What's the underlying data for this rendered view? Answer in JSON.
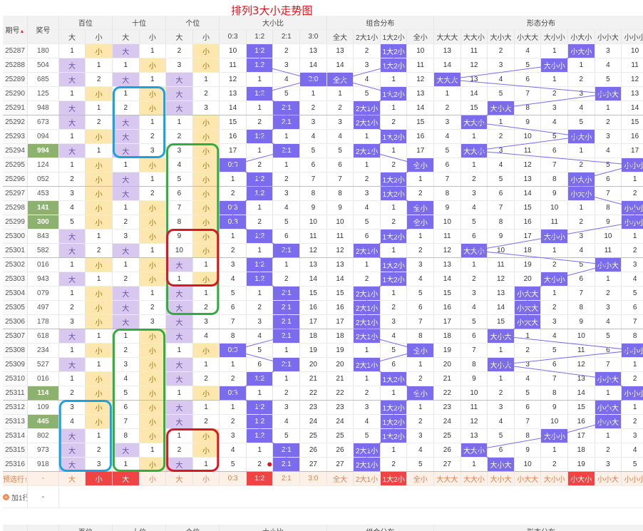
{
  "title": "排列3大小走势图",
  "header": {
    "period": "期号",
    "jiang": "奖号",
    "groups": [
      "百位",
      "十位",
      "个位",
      "大小比",
      "组合分布",
      "形态分布"
    ],
    "sub_pos": [
      "大",
      "小"
    ],
    "ratios": [
      "0:3",
      "1:2",
      "2:1",
      "3:0"
    ],
    "combos": [
      "全大",
      "2大1小",
      "1大2小",
      "全小"
    ],
    "forms": [
      "大大大",
      "大大小",
      "大小大",
      "小大大",
      "大小小",
      "小大小",
      "小小大",
      "小小小"
    ],
    "sort_icon": "sort-icon"
  },
  "accent_colors": {
    "purple_bar": "#7a6cec",
    "big_cell": "#d8c8f0",
    "small_cell": "#fde7ae",
    "green_period": "#8db26f",
    "red": "#f04343"
  },
  "rows": [
    {
      "p": "25287",
      "j": "180",
      "b": [
        "1",
        "小"
      ],
      "s": [
        "大",
        "1"
      ],
      "g": [
        "2",
        "小"
      ],
      "r": [
        "10",
        "1:2",
        "2",
        "13"
      ],
      "c": [
        "13",
        "2",
        "1大2小",
        "10"
      ],
      "f": [
        "13",
        "11",
        "2",
        "4",
        "1",
        "小大小",
        "3",
        "10"
      ]
    },
    {
      "p": "25288",
      "j": "504",
      "b": [
        "大",
        "1"
      ],
      "s": [
        "1",
        "小"
      ],
      "g": [
        "3",
        "小"
      ],
      "r": [
        "11",
        "1:2",
        "3",
        "14"
      ],
      "c": [
        "14",
        "3",
        "1大2小",
        "11"
      ],
      "f": [
        "14",
        "12",
        "3",
        "5",
        "大小小",
        "1",
        "4",
        "11"
      ]
    },
    {
      "p": "25289",
      "j": "685",
      "b": [
        "大",
        "2"
      ],
      "s": [
        "大",
        "1"
      ],
      "g": [
        "大",
        "1"
      ],
      "r": [
        "12",
        "1",
        "4",
        "3:0"
      ],
      "c": [
        "全大",
        "4",
        "1",
        "12"
      ],
      "f": [
        "大大大",
        "13",
        "4",
        "6",
        "1",
        "2",
        "5",
        "12"
      ]
    },
    {
      "p": "25290",
      "j": "125",
      "b": [
        "1",
        "小"
      ],
      "s": [
        "1",
        "小"
      ],
      "g": [
        "大",
        "2"
      ],
      "r": [
        "13",
        "1:2",
        "5",
        "1"
      ],
      "c": [
        "1",
        "5",
        "1大2小",
        "13"
      ],
      "f": [
        "1",
        "14",
        "5",
        "7",
        "2",
        "3",
        "小小大",
        "13"
      ]
    },
    {
      "p": "25291",
      "j": "948",
      "b": [
        "大",
        "1"
      ],
      "s": [
        "2",
        "小"
      ],
      "g": [
        "大",
        "3"
      ],
      "r": [
        "14",
        "1",
        "2:1",
        "2"
      ],
      "c": [
        "2",
        "2大1小",
        "1",
        "14"
      ],
      "f": [
        "2",
        "15",
        "大小大",
        "8",
        "3",
        "4",
        "1",
        "14"
      ]
    },
    {
      "p": "25292",
      "j": "673",
      "b": [
        "大",
        "2"
      ],
      "s": [
        "大",
        "1"
      ],
      "g": [
        "1",
        "小"
      ],
      "r": [
        "15",
        "2",
        "2:1",
        "3"
      ],
      "c": [
        "3",
        "2大1小",
        "2",
        "15"
      ],
      "f": [
        "3",
        "大大小",
        "1",
        "9",
        "4",
        "5",
        "2",
        "15"
      ]
    },
    {
      "p": "25293",
      "j": "094",
      "b": [
        "1",
        "小"
      ],
      "s": [
        "大",
        "2"
      ],
      "g": [
        "2",
        "小"
      ],
      "r": [
        "16",
        "1:2",
        "1",
        "4"
      ],
      "c": [
        "4",
        "1",
        "1大2小",
        "16"
      ],
      "f": [
        "4",
        "1",
        "2",
        "10",
        "5",
        "小大小",
        "3",
        "16"
      ]
    },
    {
      "p": "25294",
      "j": "994",
      "b": [
        "大",
        "1"
      ],
      "s": [
        "大",
        "3"
      ],
      "g": [
        "3",
        "小"
      ],
      "r": [
        "17",
        "1",
        "2:1",
        "5"
      ],
      "c": [
        "5",
        "2大1小",
        "1",
        "17"
      ],
      "f": [
        "5",
        "大大小",
        "3",
        "11",
        "6",
        "1",
        "4",
        "17"
      ],
      "gp": 1
    },
    {
      "p": "25295",
      "j": "124",
      "b": [
        "1",
        "小"
      ],
      "s": [
        "1",
        "小"
      ],
      "g": [
        "4",
        "小"
      ],
      "r": [
        "0:3",
        "2",
        "1",
        "6"
      ],
      "c": [
        "6",
        "1",
        "2",
        "全小"
      ],
      "f": [
        "6",
        "1",
        "4",
        "12",
        "7",
        "2",
        "5",
        "小小小"
      ]
    },
    {
      "p": "25296",
      "j": "052",
      "b": [
        "2",
        "小"
      ],
      "s": [
        "大",
        "1"
      ],
      "g": [
        "5",
        "小"
      ],
      "r": [
        "1",
        "1:2",
        "2",
        "7"
      ],
      "c": [
        "7",
        "2",
        "1大2小",
        "1"
      ],
      "f": [
        "7",
        "2",
        "5",
        "13",
        "8",
        "小大小",
        "6",
        "1"
      ]
    },
    {
      "p": "25297",
      "j": "453",
      "b": [
        "3",
        "小"
      ],
      "s": [
        "大",
        "2"
      ],
      "g": [
        "6",
        "小"
      ],
      "r": [
        "2",
        "1:2",
        "3",
        "8"
      ],
      "c": [
        "8",
        "3",
        "1大2小",
        "2"
      ],
      "f": [
        "8",
        "3",
        "6",
        "14",
        "9",
        "小大小",
        "7",
        "2"
      ]
    },
    {
      "p": "25298",
      "j": "141",
      "b": [
        "4",
        "小"
      ],
      "s": [
        "1",
        "小"
      ],
      "g": [
        "7",
        "小"
      ],
      "r": [
        "0:3",
        "1",
        "4",
        "9"
      ],
      "c": [
        "9",
        "4",
        "1",
        "全小"
      ],
      "f": [
        "9",
        "4",
        "7",
        "15",
        "10",
        "1",
        "8",
        "小小小"
      ],
      "gp": 1
    },
    {
      "p": "25299",
      "j": "300",
      "b": [
        "5",
        "小"
      ],
      "s": [
        "2",
        "小"
      ],
      "g": [
        "8",
        "小"
      ],
      "r": [
        "0:3",
        "2",
        "5",
        "10"
      ],
      "c": [
        "10",
        "5",
        "2",
        "全小"
      ],
      "f": [
        "10",
        "5",
        "8",
        "16",
        "11",
        "2",
        "9",
        "小小小"
      ],
      "gp": 1
    },
    {
      "p": "25300",
      "j": "843",
      "b": [
        "大",
        "1"
      ],
      "s": [
        "3",
        "小"
      ],
      "g": [
        "9",
        "小"
      ],
      "r": [
        "1",
        "1:2",
        "6",
        "11"
      ],
      "c": [
        "11",
        "6",
        "1大2小",
        "1"
      ],
      "f": [
        "11",
        "6",
        "9",
        "17",
        "大小小",
        "3",
        "10",
        "1"
      ]
    },
    {
      "p": "25301",
      "j": "582",
      "b": [
        "大",
        "2"
      ],
      "s": [
        "大",
        "1"
      ],
      "g": [
        "10",
        "小"
      ],
      "r": [
        "2",
        "1",
        "2:1",
        "12"
      ],
      "c": [
        "12",
        "2大1小",
        "1",
        "2"
      ],
      "f": [
        "12",
        "大大小",
        "10",
        "18",
        "1",
        "4",
        "11",
        "2"
      ]
    },
    {
      "p": "25302",
      "j": "016",
      "b": [
        "1",
        "小"
      ],
      "s": [
        "1",
        "小"
      ],
      "g": [
        "大",
        "1"
      ],
      "r": [
        "3",
        "1:2",
        "1",
        "13"
      ],
      "c": [
        "13",
        "1",
        "1大2小",
        "3"
      ],
      "f": [
        "13",
        "1",
        "11",
        "19",
        "2",
        "5",
        "小小大",
        "3"
      ]
    },
    {
      "p": "25303",
      "j": "943",
      "b": [
        "大",
        "1"
      ],
      "s": [
        "2",
        "小"
      ],
      "g": [
        "1",
        "小"
      ],
      "r": [
        "4",
        "1:2",
        "2",
        "14"
      ],
      "c": [
        "14",
        "2",
        "1大2小",
        "4"
      ],
      "f": [
        "14",
        "2",
        "12",
        "20",
        "大小小",
        "6",
        "1",
        "4"
      ]
    },
    {
      "p": "25304",
      "j": "079",
      "b": [
        "1",
        "小"
      ],
      "s": [
        "大",
        "1"
      ],
      "g": [
        "大",
        "1"
      ],
      "r": [
        "5",
        "1",
        "2:1",
        "15"
      ],
      "c": [
        "15",
        "2大1小",
        "1",
        "5"
      ],
      "f": [
        "15",
        "3",
        "13",
        "小大大",
        "1",
        "7",
        "2",
        "5"
      ]
    },
    {
      "p": "25305",
      "j": "497",
      "b": [
        "2",
        "小"
      ],
      "s": [
        "大",
        "2"
      ],
      "g": [
        "大",
        "2"
      ],
      "r": [
        "6",
        "2",
        "2:1",
        "16"
      ],
      "c": [
        "16",
        "2大1小",
        "2",
        "6"
      ],
      "f": [
        "16",
        "4",
        "14",
        "小大大",
        "2",
        "8",
        "3",
        "6"
      ]
    },
    {
      "p": "25306",
      "j": "178",
      "b": [
        "3",
        "小"
      ],
      "s": [
        "大",
        "3"
      ],
      "g": [
        "大",
        "3"
      ],
      "r": [
        "7",
        "3",
        "2:1",
        "17"
      ],
      "c": [
        "17",
        "2大1小",
        "3",
        "7"
      ],
      "f": [
        "17",
        "5",
        "15",
        "小大大",
        "3",
        "9",
        "4",
        "7"
      ]
    },
    {
      "p": "25307",
      "j": "618",
      "b": [
        "大",
        "1"
      ],
      "s": [
        "1",
        "小"
      ],
      "g": [
        "大",
        "4"
      ],
      "r": [
        "8",
        "4",
        "2:1",
        "18"
      ],
      "c": [
        "18",
        "2大1小",
        "4",
        "8"
      ],
      "f": [
        "18",
        "6",
        "大小大",
        "1",
        "4",
        "10",
        "5",
        "8"
      ]
    },
    {
      "p": "25308",
      "j": "234",
      "b": [
        "1",
        "小"
      ],
      "s": [
        "2",
        "小"
      ],
      "g": [
        "1",
        "小"
      ],
      "r": [
        "0:3",
        "5",
        "1",
        "19"
      ],
      "c": [
        "19",
        "1",
        "5",
        "全小"
      ],
      "f": [
        "19",
        "7",
        "1",
        "2",
        "5",
        "11",
        "6",
        "小小小"
      ]
    },
    {
      "p": "25309",
      "j": "527",
      "b": [
        "大",
        "1"
      ],
      "s": [
        "3",
        "小"
      ],
      "g": [
        "大",
        "1"
      ],
      "r": [
        "1",
        "6",
        "2:1",
        "20"
      ],
      "c": [
        "20",
        "2大1小",
        "6",
        "1"
      ],
      "f": [
        "20",
        "8",
        "大小大",
        "3",
        "6",
        "12",
        "7",
        "1"
      ]
    },
    {
      "p": "25310",
      "j": "016",
      "b": [
        "1",
        "小"
      ],
      "s": [
        "4",
        "小"
      ],
      "g": [
        "大",
        "2"
      ],
      "r": [
        "2",
        "1:2",
        "1",
        "21"
      ],
      "c": [
        "21",
        "1",
        "1大2小",
        "2"
      ],
      "f": [
        "21",
        "9",
        "1",
        "4",
        "7",
        "13",
        "小小大",
        "2"
      ]
    },
    {
      "p": "25311",
      "j": "114",
      "b": [
        "2",
        "小"
      ],
      "s": [
        "5",
        "小"
      ],
      "g": [
        "1",
        "小"
      ],
      "r": [
        "0:3",
        "1",
        "2",
        "22"
      ],
      "c": [
        "22",
        "2",
        "1",
        "全小"
      ],
      "f": [
        "22",
        "10",
        "2",
        "5",
        "8",
        "14",
        "1",
        "小小小"
      ],
      "gp": 1
    },
    {
      "p": "25312",
      "j": "109",
      "b": [
        "3",
        "小"
      ],
      "s": [
        "6",
        "小"
      ],
      "g": [
        "大",
        "1"
      ],
      "r": [
        "1",
        "1:2",
        "3",
        "23"
      ],
      "c": [
        "23",
        "3",
        "1大2小",
        "1"
      ],
      "f": [
        "23",
        "11",
        "3",
        "6",
        "9",
        "15",
        "小小大",
        "1"
      ]
    },
    {
      "p": "25313",
      "j": "445",
      "b": [
        "4",
        "小"
      ],
      "s": [
        "7",
        "小"
      ],
      "g": [
        "大",
        "2"
      ],
      "r": [
        "2",
        "1:2",
        "4",
        "24"
      ],
      "c": [
        "24",
        "4",
        "1大2小",
        "2"
      ],
      "f": [
        "24",
        "12",
        "4",
        "7",
        "10",
        "16",
        "小小大",
        "2"
      ],
      "gp": 1
    },
    {
      "p": "25314",
      "j": "802",
      "b": [
        "大",
        "1"
      ],
      "s": [
        "8",
        "小"
      ],
      "g": [
        "1",
        "小"
      ],
      "r": [
        "3",
        "1:2",
        "5",
        "25"
      ],
      "c": [
        "25",
        "5",
        "1大2小",
        "3"
      ],
      "f": [
        "25",
        "13",
        "5",
        "8",
        "大小小",
        "17",
        "1",
        "3"
      ]
    },
    {
      "p": "25315",
      "j": "973",
      "b": [
        "大",
        "2"
      ],
      "s": [
        "大",
        "1"
      ],
      "g": [
        "2",
        "小"
      ],
      "r": [
        "4",
        "1",
        "2:1",
        "26"
      ],
      "c": [
        "26",
        "2大1小",
        "1",
        "4"
      ],
      "f": [
        "26",
        "大大小",
        "6",
        "9",
        "1",
        "18",
        "2",
        "4"
      ]
    },
    {
      "p": "25316",
      "j": "918",
      "b": [
        "大",
        "3"
      ],
      "s": [
        "1",
        "小"
      ],
      "g": [
        "大",
        "1"
      ],
      "r": [
        "5",
        "2",
        "2:1",
        "27"
      ],
      "c": [
        "27",
        "2大1小",
        "2",
        "5"
      ],
      "f": [
        "27",
        "1",
        "大小大",
        "10",
        "2",
        "19",
        "3",
        "5"
      ]
    }
  ],
  "predict": {
    "label": "预选行↑",
    "dash": "-",
    "pos": [
      "大",
      "小",
      "大",
      "小",
      "大",
      "小"
    ],
    "r": [
      "0:3",
      "1:2",
      "2:1",
      "3:0"
    ],
    "c": [
      "全大",
      "2大1小",
      "1大2小",
      "全小"
    ],
    "f": [
      "大大大",
      "大大小",
      "大小大",
      "小大大",
      "大小小",
      "小大小",
      "小小大",
      "小小小"
    ],
    "selected_r": 1,
    "selected_f": 5
  },
  "add_row": {
    "label": "加1行",
    "dash": "-",
    "icon": "add-icon"
  },
  "footer": {
    "dash": "-"
  }
}
